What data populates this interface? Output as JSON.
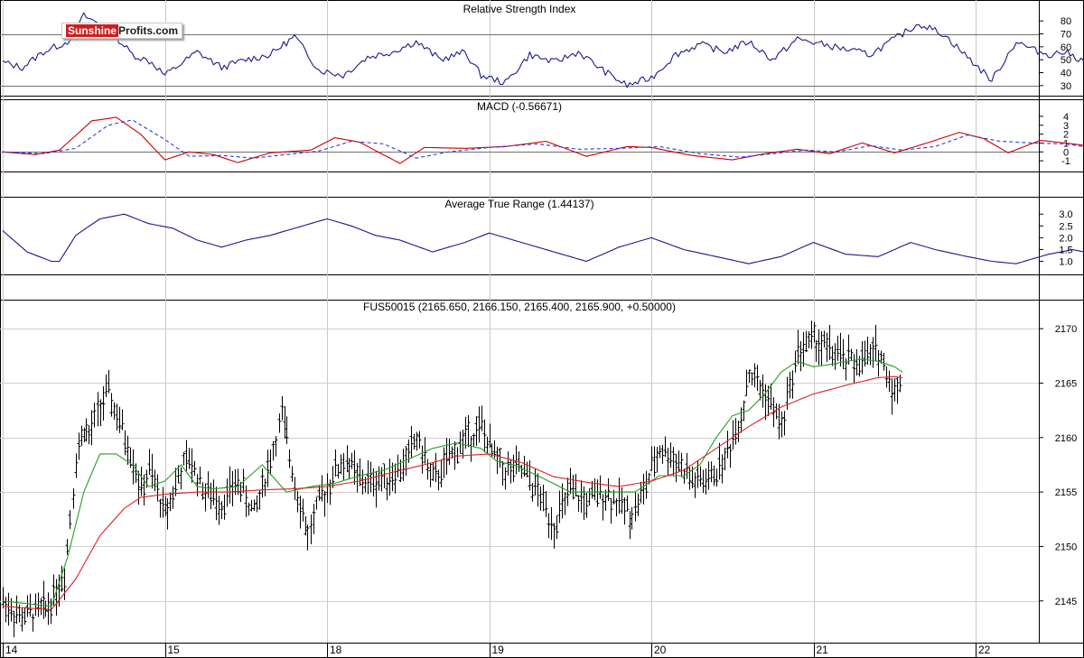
{
  "logo": {
    "part1": "Sunshine",
    "part2": "Profits.com"
  },
  "chart_data": [
    {
      "type": "line",
      "title": "Relative Strength Index",
      "ylim": [
        25,
        85
      ],
      "yticks": [
        "80",
        "70",
        "60",
        "50",
        "40",
        "30"
      ],
      "reference_lines": [
        70,
        30
      ],
      "series": [
        {
          "color": "#1a1a8c",
          "x": [
            0,
            0.12,
            0.25,
            0.4,
            0.5,
            0.65,
            0.8,
            0.92,
            1.0,
            1.2,
            1.35,
            1.5,
            1.65,
            1.8,
            1.95,
            2.1,
            2.25,
            2.4,
            2.55,
            2.7,
            2.85,
            2.95,
            3.1,
            3.25,
            3.4,
            3.55,
            3.7,
            3.85,
            4.0,
            4.15,
            4.3,
            4.45,
            4.6,
            4.75,
            4.9,
            5.05,
            5.2,
            5.35,
            5.5,
            5.65,
            5.8,
            5.95,
            6.1,
            6.25,
            6.35,
            6.45,
            6.55,
            6.65,
            6.75,
            6.85,
            6.95,
            7.05,
            7.2,
            7.35,
            7.45
          ],
          "values": [
            48,
            44,
            56,
            64,
            84,
            74,
            54,
            48,
            38,
            56,
            44,
            50,
            54,
            68,
            42,
            38,
            52,
            56,
            64,
            50,
            56,
            38,
            32,
            54,
            48,
            56,
            42,
            30,
            36,
            54,
            62,
            56,
            64,
            50,
            66,
            62,
            58,
            54,
            66,
            78,
            70,
            52,
            34,
            64,
            58,
            54,
            56,
            50,
            54,
            48,
            52,
            58,
            52,
            40,
            50
          ]
        }
      ]
    },
    {
      "type": "line",
      "title": "MACD (-0.56671)",
      "ylim": [
        -1.8,
        4.5
      ],
      "yticks": [
        "4",
        "3",
        "2",
        "1",
        "0",
        "-1"
      ],
      "reference_lines": [
        0
      ],
      "series": [
        {
          "color": "#cc0000",
          "style": "solid",
          "x": [
            0,
            0.2,
            0.35,
            0.55,
            0.7,
            0.85,
            1.0,
            1.15,
            1.3,
            1.45,
            1.65,
            1.9,
            2.05,
            2.2,
            2.45,
            2.6,
            2.85,
            3.1,
            3.35,
            3.6,
            3.85,
            4.0,
            4.25,
            4.5,
            4.7,
            4.9,
            5.1,
            5.3,
            5.5,
            5.7,
            5.9,
            6.05,
            6.2,
            6.4,
            6.6,
            6.8,
            7.0,
            7.2,
            7.35,
            7.45
          ],
          "values": [
            0,
            -0.3,
            0.2,
            3.5,
            3.9,
            2.0,
            -0.9,
            0.0,
            -0.3,
            -1.2,
            -0.1,
            0.2,
            1.6,
            1.1,
            -1.3,
            0.5,
            0.4,
            0.6,
            1.2,
            -0.5,
            0.6,
            0.5,
            -0.4,
            -0.9,
            -0.2,
            0.3,
            -0.2,
            1.0,
            -0.1,
            1.0,
            2.2,
            1.5,
            -0.1,
            1.3,
            0.9,
            0.4,
            0.1,
            0.0,
            -0.3,
            -0.6
          ]
        },
        {
          "color": "#2a3adf",
          "style": "dashed",
          "x": [
            0,
            0.25,
            0.45,
            0.65,
            0.8,
            1.0,
            1.15,
            1.35,
            1.55,
            1.75,
            1.95,
            2.15,
            2.35,
            2.55,
            2.75,
            3.0,
            3.3,
            3.55,
            3.8,
            4.05,
            4.3,
            4.55,
            4.75,
            4.95,
            5.15,
            5.35,
            5.55,
            5.75,
            5.95,
            6.15,
            6.35,
            6.55,
            6.75,
            6.95,
            7.15,
            7.3,
            7.45
          ],
          "values": [
            0,
            -0.2,
            0.4,
            3.0,
            3.6,
            1.4,
            -0.5,
            -0.4,
            -0.7,
            -0.3,
            0.1,
            1.2,
            0.9,
            -0.7,
            0.0,
            0.5,
            0.9,
            0.3,
            0.4,
            0.6,
            -0.2,
            -0.6,
            -0.2,
            0.2,
            0.0,
            0.7,
            0.2,
            0.6,
            1.9,
            1.2,
            1.0,
            0.9,
            0.4,
            0.2,
            0.0,
            -0.2,
            -0.5
          ]
        }
      ]
    },
    {
      "type": "line",
      "title": "Average True Range (1.44137)",
      "ylim": [
        0.6,
        3.2
      ],
      "yticks": [
        "3.0",
        "2.5",
        "2.0",
        "1.5",
        "1.0"
      ],
      "series": [
        {
          "color": "#1a1a8c",
          "x": [
            0,
            0.15,
            0.3,
            0.35,
            0.45,
            0.6,
            0.75,
            0.9,
            1.05,
            1.2,
            1.35,
            1.5,
            1.65,
            1.8,
            2.0,
            2.15,
            2.3,
            2.45,
            2.65,
            2.85,
            3.0,
            3.2,
            3.4,
            3.6,
            3.8,
            4.0,
            4.2,
            4.4,
            4.6,
            4.8,
            5.0,
            5.2,
            5.4,
            5.6,
            5.75,
            5.95,
            6.1,
            6.25,
            6.45,
            6.6,
            6.8,
            6.95,
            7.1,
            7.25,
            7.35,
            7.45
          ],
          "values": [
            2.3,
            1.4,
            1.0,
            1.0,
            2.1,
            2.8,
            3.0,
            2.6,
            2.4,
            1.9,
            1.6,
            1.9,
            2.1,
            2.4,
            2.8,
            2.5,
            2.1,
            1.9,
            1.4,
            1.8,
            2.2,
            1.8,
            1.4,
            1.0,
            1.6,
            2.0,
            1.5,
            1.2,
            0.9,
            1.2,
            1.8,
            1.3,
            1.2,
            1.8,
            1.5,
            1.2,
            1.0,
            0.9,
            1.3,
            1.5,
            1.2,
            1.0,
            0.8,
            1.0,
            1.6,
            1.5
          ]
        }
      ]
    },
    {
      "type": "line",
      "title": "FUS50015 (2165.650, 2166.150, 2165.400, 2165.900, +0.50000)",
      "x_tick_labels": [
        "14",
        "15",
        "18",
        "19",
        "20",
        "21",
        "22"
      ],
      "x_tick_positions": [
        0,
        1,
        2,
        3,
        4,
        5,
        6
      ],
      "ylim": [
        2141.5,
        2171.5
      ],
      "yticks": [
        "2170",
        "2165",
        "2160",
        "2155",
        "2150",
        "2145"
      ],
      "series": [
        {
          "style": "price_bars",
          "color": "#000000",
          "x": [
            0,
            0.1,
            0.2,
            0.28,
            0.33,
            0.38,
            0.45,
            0.5,
            0.53,
            0.6,
            0.65,
            0.7,
            0.75,
            0.8,
            0.85,
            0.9,
            1.0,
            1.1,
            1.15,
            1.25,
            1.35,
            1.45,
            1.55,
            1.65,
            1.72,
            1.8,
            1.88,
            1.95,
            2.05,
            2.12,
            2.2,
            2.3,
            2.45,
            2.55,
            2.65,
            2.75,
            2.85,
            2.95,
            3.0,
            3.1,
            3.2,
            3.3,
            3.4,
            3.5,
            3.6,
            3.7,
            3.8,
            3.88,
            3.95,
            4.05,
            4.15,
            4.25,
            4.35,
            4.45,
            4.55,
            4.6,
            4.7,
            4.8,
            4.9,
            5.0,
            5.1,
            5.2,
            5.3,
            5.4,
            5.45,
            5.5,
            5.55
          ],
          "values": [
            2145,
            2143.5,
            2144,
            2144.5,
            2146,
            2147.5,
            2158,
            2161,
            2160,
            2163,
            2164,
            2162,
            2160,
            2158,
            2155,
            2157,
            2153,
            2157,
            2158,
            2155,
            2154,
            2156,
            2153,
            2158,
            2162,
            2156,
            2151,
            2154,
            2157,
            2158,
            2156,
            2156,
            2157,
            2160,
            2156,
            2158,
            2160,
            2161,
            2159,
            2157,
            2157,
            2155,
            2152,
            2155,
            2154,
            2155,
            2154,
            2153,
            2155,
            2159,
            2158,
            2156,
            2156,
            2158,
            2162,
            2166,
            2164,
            2161,
            2168,
            2169,
            2168,
            2167,
            2167,
            2168,
            2166,
            2164,
            2165.9
          ]
        },
        {
          "color": "#22a022",
          "x": [
            0,
            0.3,
            0.4,
            0.5,
            0.6,
            0.7,
            0.8,
            0.9,
            1.0,
            1.1,
            1.2,
            1.3,
            1.45,
            1.6,
            1.75,
            1.9,
            2.05,
            2.2,
            2.35,
            2.5,
            2.65,
            2.8,
            2.95,
            3.05,
            3.15,
            3.3,
            3.5,
            3.7,
            3.9,
            4.05,
            4.2,
            4.3,
            4.4,
            4.5,
            4.6,
            4.7,
            4.8,
            4.9,
            5.0,
            5.1,
            5.2,
            5.3,
            5.4,
            5.5,
            5.55
          ],
          "values": [
            2145,
            2144.5,
            2149,
            2155,
            2158.5,
            2158.5,
            2157.5,
            2155.5,
            2156,
            2157.5,
            2155.5,
            2155.3,
            2155.5,
            2157.5,
            2155,
            2155.5,
            2155.8,
            2156.5,
            2157,
            2158,
            2159,
            2159.5,
            2159,
            2157.8,
            2157.5,
            2156.5,
            2155,
            2155,
            2155,
            2156.5,
            2156.5,
            2157.5,
            2160,
            2162,
            2162.5,
            2164,
            2166,
            2167,
            2166.5,
            2166.7,
            2167,
            2167.2,
            2167,
            2166.5,
            2166
          ]
        },
        {
          "color": "#e02020",
          "x": [
            0,
            0.3,
            0.45,
            0.6,
            0.75,
            0.85,
            1.0,
            1.2,
            1.4,
            1.6,
            1.8,
            2.0,
            2.2,
            2.4,
            2.6,
            2.8,
            3.0,
            3.2,
            3.4,
            3.6,
            3.8,
            4.0,
            4.2,
            4.4,
            4.6,
            4.8,
            5.0,
            5.2,
            5.4,
            5.5,
            5.55
          ],
          "values": [
            2144.5,
            2144.2,
            2147,
            2151,
            2153.5,
            2154.5,
            2154.8,
            2155,
            2155,
            2155.2,
            2155.3,
            2155.5,
            2156,
            2156.8,
            2157.5,
            2158.3,
            2158.5,
            2157.7,
            2156.4,
            2155.9,
            2155.5,
            2156,
            2157,
            2159,
            2161,
            2162.8,
            2164,
            2164.8,
            2165.5,
            2165.6,
            2165.5
          ]
        }
      ]
    }
  ]
}
